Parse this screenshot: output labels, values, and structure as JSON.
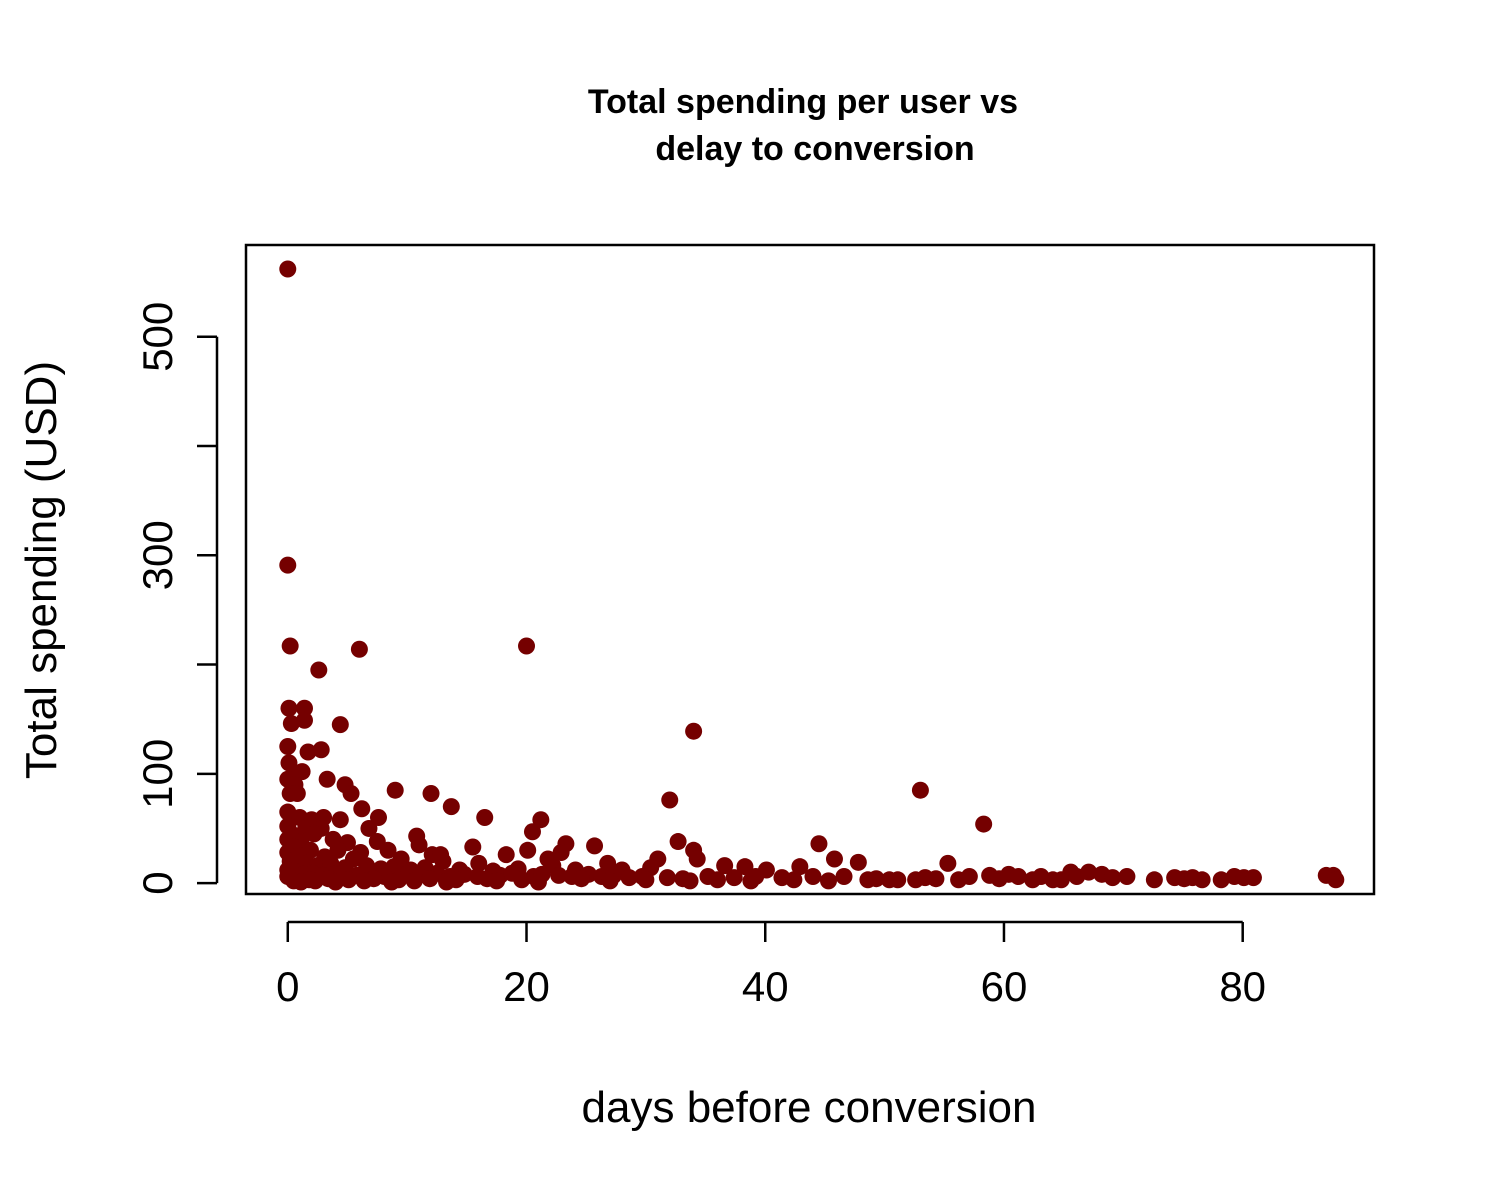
{
  "chart_data": {
    "type": "scatter",
    "title_lines": [
      "Total spending per user vs",
      "delay to conversion"
    ],
    "xlabel": "days before conversion",
    "ylabel": "Total spending (USD)",
    "xlim": [
      -3.5,
      91
    ],
    "ylim": [
      -10,
      584
    ],
    "x_ticks": [
      0,
      20,
      40,
      60,
      80
    ],
    "y_ticks": [
      0,
      100,
      200,
      300,
      400,
      500
    ],
    "y_tick_labels": [
      "0",
      "100",
      "",
      "300",
      "",
      "500"
    ],
    "grid": false,
    "legend": "none",
    "point_color": "#750000",
    "points": [
      [
        0,
        562
      ],
      [
        0,
        291
      ],
      [
        0.2,
        217
      ],
      [
        6,
        214
      ],
      [
        20,
        217
      ],
      [
        2.6,
        195
      ],
      [
        0.1,
        160
      ],
      [
        1.4,
        160
      ],
      [
        0.3,
        146
      ],
      [
        1.4,
        149
      ],
      [
        4.4,
        145
      ],
      [
        34,
        139
      ],
      [
        0,
        125
      ],
      [
        1.7,
        120
      ],
      [
        2.8,
        122
      ],
      [
        0.1,
        110
      ],
      [
        1.2,
        102
      ],
      [
        0.6,
        99
      ],
      [
        0,
        95
      ],
      [
        3.3,
        95
      ],
      [
        0.6,
        90
      ],
      [
        4.8,
        90
      ],
      [
        0.2,
        82
      ],
      [
        0.8,
        82
      ],
      [
        5.3,
        82
      ],
      [
        9,
        85
      ],
      [
        12,
        82
      ],
      [
        53,
        85
      ],
      [
        6.2,
        68
      ],
      [
        13.7,
        70
      ],
      [
        32,
        76
      ],
      [
        0,
        65
      ],
      [
        1,
        60
      ],
      [
        2,
        58
      ],
      [
        3,
        60
      ],
      [
        4.4,
        58
      ],
      [
        7.6,
        60
      ],
      [
        16.5,
        60
      ],
      [
        21.2,
        58
      ],
      [
        58.3,
        54
      ],
      [
        0,
        52
      ],
      [
        1.5,
        50
      ],
      [
        2.8,
        50
      ],
      [
        6.8,
        50
      ],
      [
        20.5,
        47
      ],
      [
        0.3,
        45
      ],
      [
        2.2,
        45
      ],
      [
        3.8,
        40
      ],
      [
        5,
        37
      ],
      [
        7.5,
        38
      ],
      [
        10.8,
        43
      ],
      [
        0,
        40
      ],
      [
        1.1,
        38
      ],
      [
        11,
        35
      ],
      [
        15.5,
        33
      ],
      [
        23.3,
        36
      ],
      [
        25.7,
        34
      ],
      [
        32.7,
        38
      ],
      [
        44.5,
        36
      ],
      [
        0.5,
        33
      ],
      [
        1.9,
        30
      ],
      [
        4.2,
        30
      ],
      [
        6.1,
        28
      ],
      [
        8.4,
        30
      ],
      [
        12.1,
        26
      ],
      [
        12.8,
        26
      ],
      [
        18.3,
        26
      ],
      [
        20.1,
        30
      ],
      [
        22.9,
        28
      ],
      [
        34,
        30
      ],
      [
        0,
        28
      ],
      [
        0.9,
        25
      ],
      [
        3.1,
        24
      ],
      [
        5.5,
        22
      ],
      [
        9.5,
        22
      ],
      [
        13,
        20
      ],
      [
        16,
        18
      ],
      [
        21.8,
        22
      ],
      [
        31,
        22
      ],
      [
        34.3,
        22
      ],
      [
        45.8,
        22
      ],
      [
        47.8,
        19
      ],
      [
        55.3,
        18
      ],
      [
        0.2,
        20
      ],
      [
        1.6,
        18
      ],
      [
        2.5,
        16
      ],
      [
        3.6,
        18
      ],
      [
        4.8,
        14
      ],
      [
        6.6,
        16
      ],
      [
        7.8,
        13
      ],
      [
        8.9,
        15
      ],
      [
        10.3,
        12
      ],
      [
        11.5,
        14
      ],
      [
        14.4,
        12
      ],
      [
        17.2,
        11
      ],
      [
        19.3,
        13
      ],
      [
        22.2,
        16
      ],
      [
        24.1,
        12
      ],
      [
        26.8,
        18
      ],
      [
        28,
        12
      ],
      [
        30.4,
        14
      ],
      [
        36.6,
        16
      ],
      [
        38.3,
        15
      ],
      [
        40.1,
        12
      ],
      [
        42.9,
        15
      ],
      [
        0,
        12
      ],
      [
        0.7,
        10
      ],
      [
        1.3,
        8
      ],
      [
        2.1,
        9
      ],
      [
        2.9,
        7
      ],
      [
        3.9,
        8
      ],
      [
        4.6,
        9
      ],
      [
        5.8,
        7
      ],
      [
        6.9,
        10
      ],
      [
        8.1,
        6
      ],
      [
        9.9,
        8
      ],
      [
        10.9,
        7
      ],
      [
        12.5,
        9
      ],
      [
        13.6,
        6
      ],
      [
        14.8,
        8
      ],
      [
        15.9,
        6
      ],
      [
        17.8,
        7
      ],
      [
        18.8,
        9
      ],
      [
        20.6,
        6
      ],
      [
        21.3,
        8
      ],
      [
        22.7,
        7
      ],
      [
        23.8,
        6
      ],
      [
        25.2,
        8
      ],
      [
        26.3,
        6
      ],
      [
        27.3,
        7
      ],
      [
        28.6,
        5
      ],
      [
        29.7,
        6
      ],
      [
        31.8,
        5
      ],
      [
        33.1,
        4
      ],
      [
        35.2,
        6
      ],
      [
        37.4,
        5
      ],
      [
        39.2,
        6
      ],
      [
        41.4,
        5
      ],
      [
        44,
        6
      ],
      [
        46.6,
        6
      ],
      [
        49.3,
        4
      ],
      [
        0.4,
        4
      ],
      [
        1.8,
        3
      ],
      [
        3.4,
        4
      ],
      [
        5.1,
        3
      ],
      [
        7.2,
        4
      ],
      [
        9.3,
        3
      ],
      [
        11.9,
        4
      ],
      [
        14.1,
        3
      ],
      [
        16.7,
        4
      ],
      [
        19.6,
        3
      ],
      [
        24.6,
        4
      ],
      [
        30,
        3
      ],
      [
        36,
        3
      ],
      [
        42.4,
        3
      ],
      [
        48.6,
        3
      ],
      [
        50.4,
        3
      ],
      [
        51.1,
        3
      ],
      [
        52.6,
        3
      ],
      [
        53.4,
        5
      ],
      [
        54.3,
        4
      ],
      [
        56.2,
        3
      ],
      [
        57.1,
        6
      ],
      [
        58.8,
        7
      ],
      [
        59.6,
        4
      ],
      [
        60.4,
        8
      ],
      [
        61.2,
        6
      ],
      [
        62.4,
        3
      ],
      [
        63.1,
        6
      ],
      [
        64.1,
        3
      ],
      [
        64.8,
        3
      ],
      [
        65.6,
        10
      ],
      [
        66.1,
        6
      ],
      [
        67.1,
        10
      ],
      [
        68.2,
        8
      ],
      [
        69.1,
        5
      ],
      [
        70.3,
        6
      ],
      [
        72.6,
        3
      ],
      [
        74.3,
        5
      ],
      [
        75.1,
        4
      ],
      [
        75.8,
        5
      ],
      [
        76.6,
        3
      ],
      [
        78.2,
        3
      ],
      [
        79.3,
        6
      ],
      [
        80.1,
        5
      ],
      [
        80.9,
        5
      ],
      [
        87,
        7
      ],
      [
        87.6,
        7
      ],
      [
        87.8,
        3
      ],
      [
        0,
        6
      ],
      [
        0.5,
        2
      ],
      [
        1.1,
        1
      ],
      [
        2.3,
        2
      ],
      [
        4,
        1
      ],
      [
        6.4,
        2
      ],
      [
        8.7,
        1
      ],
      [
        10.6,
        2
      ],
      [
        13.3,
        1
      ],
      [
        17.5,
        2
      ],
      [
        21,
        1
      ],
      [
        27,
        2
      ],
      [
        33.7,
        2
      ],
      [
        38.8,
        2
      ],
      [
        45.3,
        2
      ]
    ]
  }
}
